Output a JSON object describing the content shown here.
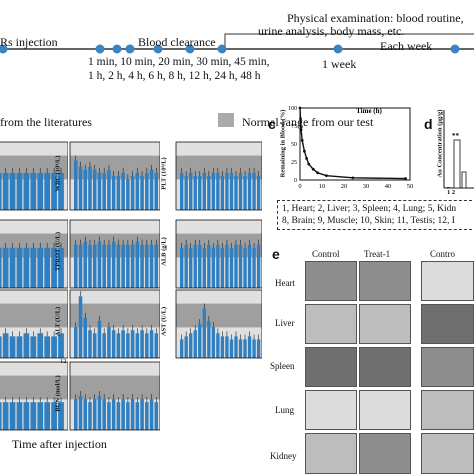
{
  "timeline": {
    "injection_label": "Rs injection",
    "clearance_label": "Blood clearance",
    "physical_label": "Physical examination: blood routine,",
    "physical_label_2": "urine analysis, body mass, etc.",
    "each_week_label": "Each week",
    "times_row1": "1 min, 10 min, 20 min, 30 min, 45 min,",
    "times_row2": "1 h, 2 h, 4 h, 6 h, 8 h, 12 h, 24 h, 48 h",
    "week_label": "1 week"
  },
  "legend": {
    "literature_label": "from the literatures",
    "normal_label": "Normal range from our test"
  },
  "panel_b": {
    "charts": [
      {
        "ylabel": "WBC (10⁹/L)",
        "ymax": "",
        "values": [
          16,
          14,
          13,
          14,
          13,
          12,
          12,
          13,
          11,
          11,
          12,
          10,
          11,
          12,
          11,
          12,
          13,
          12
        ]
      },
      {
        "ylabel": "PLT (10⁹/L)",
        "ymax": "",
        "values": [
          12,
          11,
          12,
          11,
          11,
          12,
          11,
          12,
          12,
          11,
          12,
          12,
          11,
          12,
          11,
          12,
          12,
          11
        ]
      },
      {
        "ylabel": "TPROT (U/L)",
        "ymax": "",
        "values": [
          14,
          14,
          15,
          14,
          14,
          15,
          14,
          14,
          15,
          14,
          14,
          14,
          14,
          15,
          14,
          14,
          14,
          14
        ]
      },
      {
        "ylabel": "ALB (g/L)",
        "ymax": "",
        "values": [
          13,
          14,
          13,
          14,
          14,
          13,
          14,
          13,
          14,
          13,
          14,
          13,
          14,
          14,
          13,
          14,
          13,
          14
        ]
      },
      {
        "ylabel": "ALT (U/L)",
        "ymax": "",
        "values": [
          10,
          20,
          13,
          9,
          8,
          12,
          8,
          10,
          9,
          8,
          9,
          8,
          9,
          8,
          9,
          8,
          9,
          8
        ]
      },
      {
        "ylabel": "AST (U/L)",
        "ymax": "",
        "values": [
          6,
          7,
          8,
          9,
          11,
          16,
          12,
          10,
          8,
          7,
          7,
          6,
          7,
          6,
          6,
          7,
          6,
          6
        ]
      },
      {
        "ylabel": "BUN (mol/L)",
        "ymax": "12",
        "values": [
          10,
          11,
          10,
          9,
          10,
          11,
          10,
          9,
          10,
          9,
          10,
          9,
          10,
          9,
          10,
          9,
          10,
          9
        ]
      }
    ],
    "x_axis_label": "Time after injection"
  },
  "panel_c": {
    "letter": "c",
    "ylabel": "Remaining in Blood (%)",
    "xlabel": "Time (h)",
    "y_ticks": [
      "100",
      "75",
      "50",
      "25",
      "0"
    ],
    "x_ticks": [
      "0",
      "10",
      "20",
      "30",
      "40",
      "50"
    ],
    "chart_data": {
      "type": "line",
      "x": [
        0,
        0.25,
        0.5,
        1,
        2,
        3,
        4,
        6,
        8,
        12,
        24,
        48
      ],
      "y": [
        100,
        85,
        70,
        55,
        40,
        30,
        22,
        15,
        10,
        6,
        3,
        2
      ],
      "xlim": [
        0,
        50
      ],
      "ylim": [
        0,
        100
      ],
      "xlabel": "Time (h)",
      "ylabel": "Remaining in Blood (%)"
    }
  },
  "panel_d": {
    "letter": "d",
    "ylabel": "Au Concentration (μg/g)",
    "x_ticks": "1 2",
    "legend_line1": "1, Heart; 2, Liver; 3, Spleen; 4, Lung; 5, Kidn",
    "legend_line2": "8, Brain; 9, Muscle; 10, Skin; 11, Testis; 12, I"
  },
  "panel_e": {
    "letter": "e",
    "col_control": "Control",
    "col_treat1": "Treat-1",
    "col_control2": "Contro",
    "rows": [
      "Heart",
      "Liver",
      "Spleen",
      "Lung",
      "Kidney"
    ]
  }
}
